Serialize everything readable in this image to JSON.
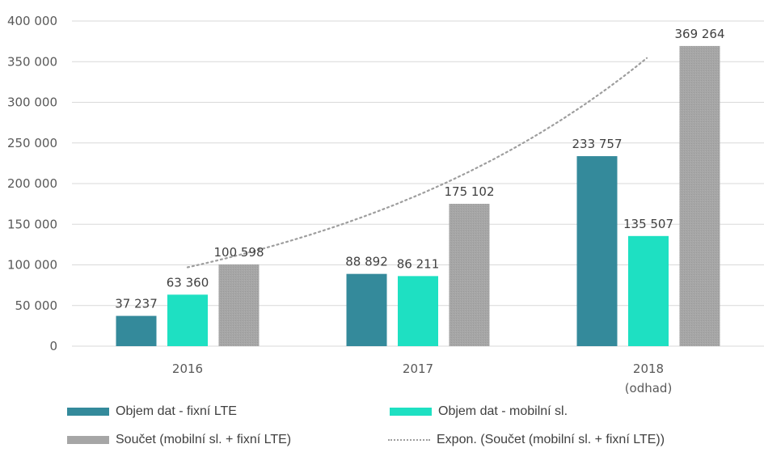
{
  "chart_data": {
    "type": "bar",
    "title": "",
    "xlabel": "",
    "ylabel": "",
    "ylim": [
      0,
      400000
    ],
    "yticks": [
      0,
      50000,
      100000,
      150000,
      200000,
      250000,
      300000,
      350000,
      400000
    ],
    "ytick_labels": [
      "0",
      "50 000",
      "100 000",
      "150 000",
      "200 000",
      "250 000",
      "300 000",
      "350 000",
      "400 000"
    ],
    "grid": true,
    "categories": [
      "2016",
      "2017",
      "2018"
    ],
    "category_sublabels": [
      "",
      "",
      "(odhad)"
    ],
    "series": [
      {
        "name": "Objem dat - fixní LTE",
        "color": "#348A9B",
        "values": [
          37237,
          88892,
          233757
        ],
        "labels": [
          "37 237",
          "88 892",
          "233 757"
        ]
      },
      {
        "name": "Objem dat - mobilní sl.",
        "color": "#1EE0C2",
        "values": [
          63360,
          86211,
          135507
        ],
        "labels": [
          "63 360",
          "86 211",
          "135 507"
        ]
      },
      {
        "name": "Součet (mobilní sl. + fixní LTE)",
        "color": "#A6A6A6",
        "values": [
          100598,
          175102,
          369264
        ],
        "labels": [
          "100 598",
          "175 102",
          "369 264"
        ]
      }
    ],
    "trendline": {
      "name": "Expon. (Součet (mobilní sl. + fixní LTE))",
      "type": "exponential",
      "of_series": "Součet (mobilní sl. + fixní LTE)",
      "color": "#9E9E9E",
      "style": "dotted",
      "points": [
        {
          "x": 0,
          "y": 97000
        },
        {
          "x": 1,
          "y": 180000
        },
        {
          "x": 2,
          "y": 356000
        }
      ]
    },
    "legend": {
      "position": "bottom",
      "items": [
        {
          "label": "Objem dat - fixní LTE",
          "type": "bar",
          "color": "#348A9B"
        },
        {
          "label": "Objem dat - mobilní sl.",
          "type": "bar",
          "color": "#1EE0C2"
        },
        {
          "label": "Součet (mobilní sl. + fixní LTE)",
          "type": "bar",
          "color": "#A6A6A6"
        },
        {
          "label": "Expon. (Součet (mobilní sl. + fixní LTE))",
          "type": "dotted-line",
          "color": "#9E9E9E"
        }
      ]
    }
  }
}
